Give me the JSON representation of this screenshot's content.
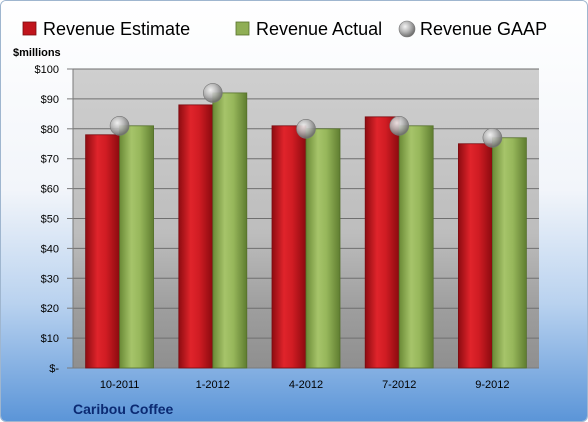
{
  "chart_data": {
    "type": "bar",
    "ylabel": "$millions",
    "ylim": [
      0,
      100
    ],
    "y_tick_step": 10,
    "y_tick_labels": [
      "$-",
      "$10",
      "$20",
      "$30",
      "$40",
      "$50",
      "$60",
      "$70",
      "$80",
      "$90",
      "$100"
    ],
    "categories": [
      "10-2011",
      "1-2012",
      "4-2012",
      "7-2012",
      "9-2012"
    ],
    "series": [
      {
        "name": "Revenue Estimate",
        "kind": "bar",
        "values": [
          78,
          88,
          81,
          84,
          75
        ],
        "color": "#c0141c"
      },
      {
        "name": "Revenue Actual",
        "kind": "bar",
        "values": [
          81,
          92,
          80,
          81,
          77
        ],
        "color": "#8fae55"
      },
      {
        "name": "Revenue GAAP",
        "kind": "marker",
        "values": [
          81,
          92,
          80,
          81,
          77
        ],
        "color": "#a8a8a8"
      }
    ],
    "legend_position": "top",
    "grid": true,
    "footer_label": "Caribou Coffee"
  }
}
